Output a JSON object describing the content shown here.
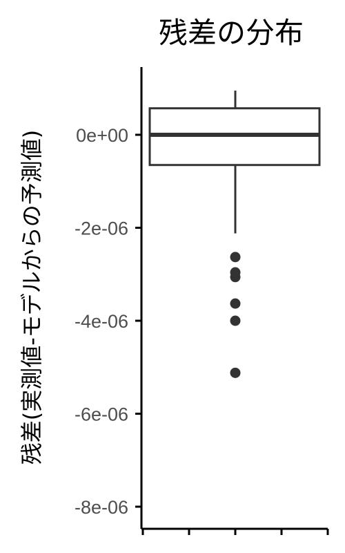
{
  "chart_data": {
    "type": "boxplot",
    "title": "残差の分布",
    "xlabel": "",
    "ylabel": "残差(実測値-モデルからの予測値)",
    "ylim": [
      -8.4e-06,
      1.4e-06
    ],
    "y_ticks": [
      {
        "value": 0,
        "label": "0e+00"
      },
      {
        "value": -2e-06,
        "label": "-2e-06"
      },
      {
        "value": -4e-06,
        "label": "-4e-06"
      },
      {
        "value": -6e-06,
        "label": "-6e-06"
      },
      {
        "value": -8e-06,
        "label": "-8e-06"
      }
    ],
    "x_tick_count": 5,
    "box": {
      "whisker_low": -2.12e-06,
      "q1": -6.5e-07,
      "median": 0.0,
      "q3": 5.7e-07,
      "whisker_high": 9.5e-07
    },
    "outliers": [
      -2.63e-06,
      -2.96e-06,
      -3.06e-06,
      -3.63e-06,
      -4e-06,
      -5.12e-06
    ],
    "colors": {
      "box_line": "#333333",
      "axis": "#000000",
      "tick_label": "#4d4d4d"
    }
  }
}
